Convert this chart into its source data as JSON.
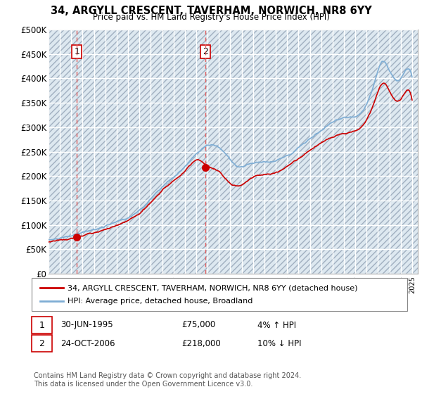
{
  "title": "34, ARGYLL CRESCENT, TAVERHAM, NORWICH, NR8 6YY",
  "subtitle": "Price paid vs. HM Land Registry's House Price Index (HPI)",
  "ylim": [
    0,
    500000
  ],
  "yticks": [
    0,
    50000,
    100000,
    150000,
    200000,
    250000,
    300000,
    350000,
    400000,
    450000,
    500000
  ],
  "ytick_labels": [
    "£0",
    "£50K",
    "£100K",
    "£150K",
    "£200K",
    "£250K",
    "£300K",
    "£350K",
    "£400K",
    "£450K",
    "£500K"
  ],
  "sale1_date": 1995.5,
  "sale1_price": 75000,
  "sale1_label": "1",
  "sale2_date": 2006.82,
  "sale2_price": 218000,
  "sale2_label": "2",
  "sale1_info": "30-JUN-1995",
  "sale1_amount": "£75,000",
  "sale1_hpi": "4% ↑ HPI",
  "sale2_info": "24-OCT-2006",
  "sale2_amount": "£218,000",
  "sale2_hpi": "10% ↓ HPI",
  "legend1_label": "34, ARGYLL CRESCENT, TAVERHAM, NORWICH, NR8 6YY (detached house)",
  "legend2_label": "HPI: Average price, detached house, Broadland",
  "footer": "Contains HM Land Registry data © Crown copyright and database right 2024.\nThis data is licensed under the Open Government Licence v3.0.",
  "hpi_color": "#7eadd4",
  "sale_color": "#cc0000",
  "dashed_color": "#e06060",
  "background_plot": "#dde8f0",
  "grid_color": "#ffffff"
}
